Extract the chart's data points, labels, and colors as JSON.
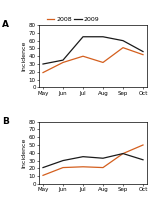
{
  "months": [
    "May",
    "Jun",
    "Jul",
    "Aug",
    "Sep",
    "Oct"
  ],
  "panel_A": {
    "label": "A",
    "data_2008": [
      19,
      32,
      40,
      32,
      51,
      42
    ],
    "data_2009": [
      30,
      35,
      65,
      65,
      60,
      46
    ]
  },
  "panel_B": {
    "label": "B",
    "data_2008": [
      11,
      21,
      22,
      21,
      39,
      50
    ],
    "data_2009": [
      21,
      30,
      35,
      33,
      39,
      31
    ]
  },
  "color_2008": "#d45f1e",
  "color_2009": "#1a1a1a",
  "ylabel": "Incidence",
  "ylim": [
    0,
    80
  ],
  "yticks": [
    0,
    10,
    20,
    30,
    40,
    50,
    60,
    70,
    80
  ],
  "legend_2008": "2008",
  "legend_2009": "2009",
  "tick_fontsize": 4.0,
  "ylabel_fontsize": 4.5,
  "legend_fontsize": 4.5
}
